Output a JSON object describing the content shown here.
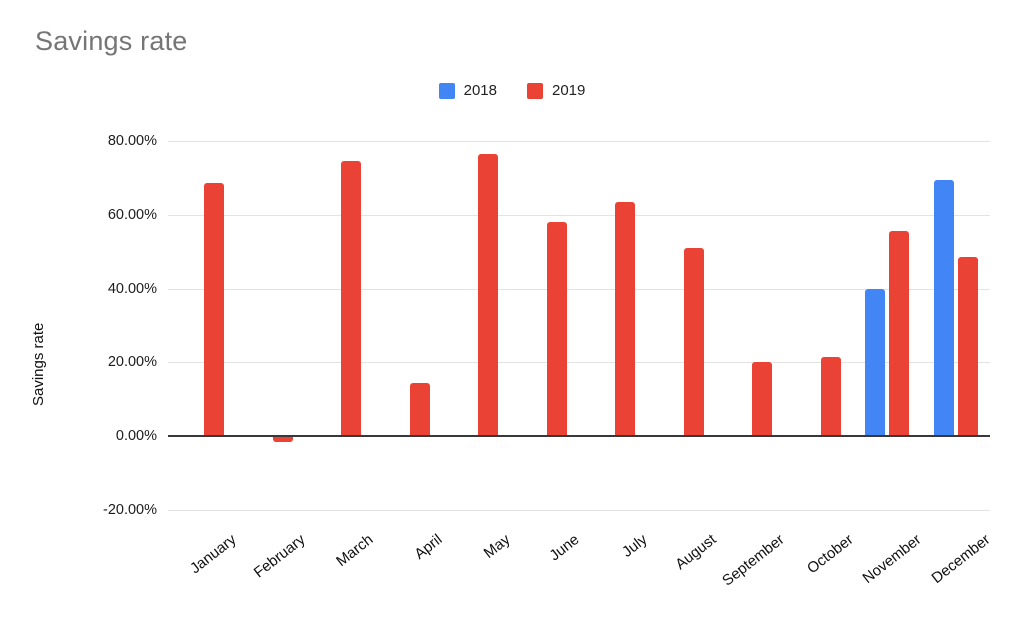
{
  "chart": {
    "title": "Savings rate",
    "y_axis_title": "Savings rate"
  },
  "colors": {
    "title_text": "#757575",
    "axis_text": "#1c1c1c",
    "gridline": "#e3e3e3",
    "baseline": "#383838",
    "series_2018": "#4285F4",
    "series_2019": "#EA4335",
    "background": "#ffffff"
  },
  "chart_data": {
    "type": "bar",
    "title": "Savings rate",
    "xlabel": "",
    "ylabel": "Savings rate",
    "categories": [
      "January",
      "February",
      "March",
      "April",
      "May",
      "June",
      "July",
      "August",
      "September",
      "October",
      "November",
      "December"
    ],
    "series": [
      {
        "name": "2018",
        "color": "#4285F4",
        "values": [
          null,
          null,
          null,
          null,
          null,
          null,
          null,
          null,
          null,
          null,
          40,
          69.5
        ]
      },
      {
        "name": "2019",
        "color": "#EA4335",
        "values": [
          68.5,
          -1.5,
          74.5,
          14.5,
          76.5,
          58,
          63.5,
          51,
          20,
          21.5,
          55.5,
          48.5
        ]
      }
    ],
    "ylim": [
      -20,
      80
    ],
    "yticks": [
      {
        "value": 80,
        "label": "80.00%"
      },
      {
        "value": 60,
        "label": "60.00%"
      },
      {
        "value": 40,
        "label": "40.00%"
      },
      {
        "value": 20,
        "label": "20.00%"
      },
      {
        "value": 0,
        "label": "0.00%"
      },
      {
        "value": -20,
        "label": "-20.00%"
      }
    ],
    "grid": true,
    "legend_position": "top"
  }
}
